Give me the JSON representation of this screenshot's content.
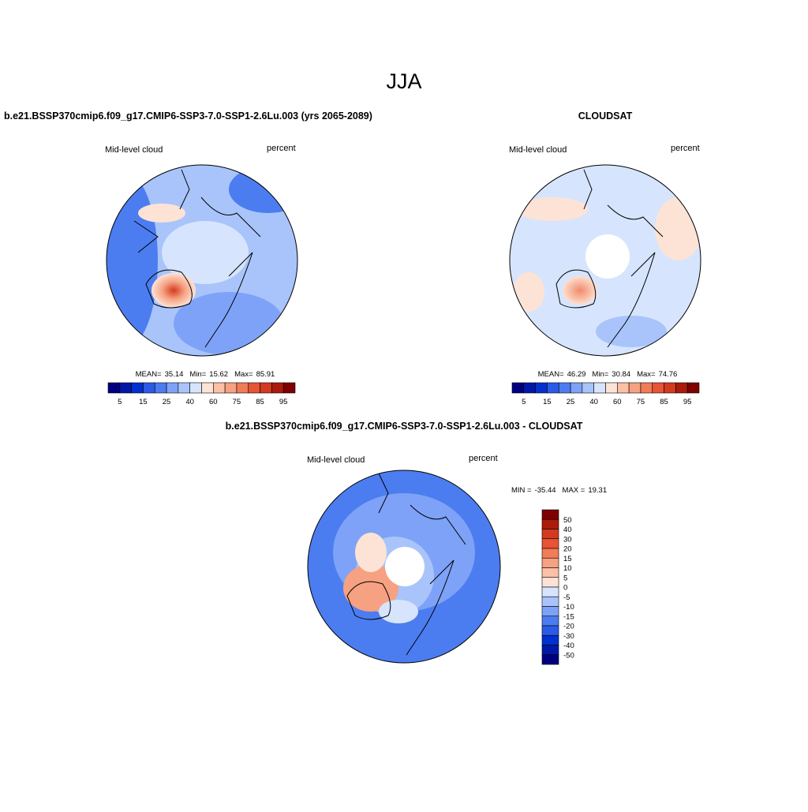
{
  "title": "JJA",
  "panels": [
    {
      "title": "b.e21.BSSP370cmip6.f09_g17.CMIP6-SSP3-7.0-SSP1-2.6Lu.003 (yrs 2065-2089)",
      "left_label": "Mid-level cloud",
      "right_label": "percent",
      "stats": {
        "mean_label": "MEAN=",
        "mean": 35.14,
        "min_label": "Min=",
        "min": 15.62,
        "max_label": "Max=",
        "max": 85.91
      },
      "colorbar_ticks": [
        5,
        15,
        25,
        40,
        60,
        75,
        85,
        95
      ]
    },
    {
      "title": "CLOUDSAT",
      "left_label": "Mid-level cloud",
      "right_label": "percent",
      "stats": {
        "mean_label": "MEAN=",
        "mean": 46.29,
        "min_label": "Min=",
        "min": 30.84,
        "max_label": "Max=",
        "max": 74.76
      },
      "colorbar_ticks": [
        5,
        15,
        25,
        40,
        60,
        75,
        85,
        95
      ]
    }
  ],
  "difference": {
    "title": "b.e21.BSSP370cmip6.f09_g17.CMIP6-SSP3-7.0-SSP1-2.6Lu.003 - CLOUDSAT",
    "left_label": "Mid-level cloud",
    "right_label": "percent",
    "stats": {
      "min_label": "MIN =",
      "min": -35.44,
      "max_label": "MAX =",
      "max": 19.31
    },
    "colorbar_ticks": [
      50,
      40,
      30,
      20,
      15,
      10,
      5,
      0,
      -5,
      -10,
      -15,
      -20,
      -30,
      -40,
      -50
    ]
  }
}
